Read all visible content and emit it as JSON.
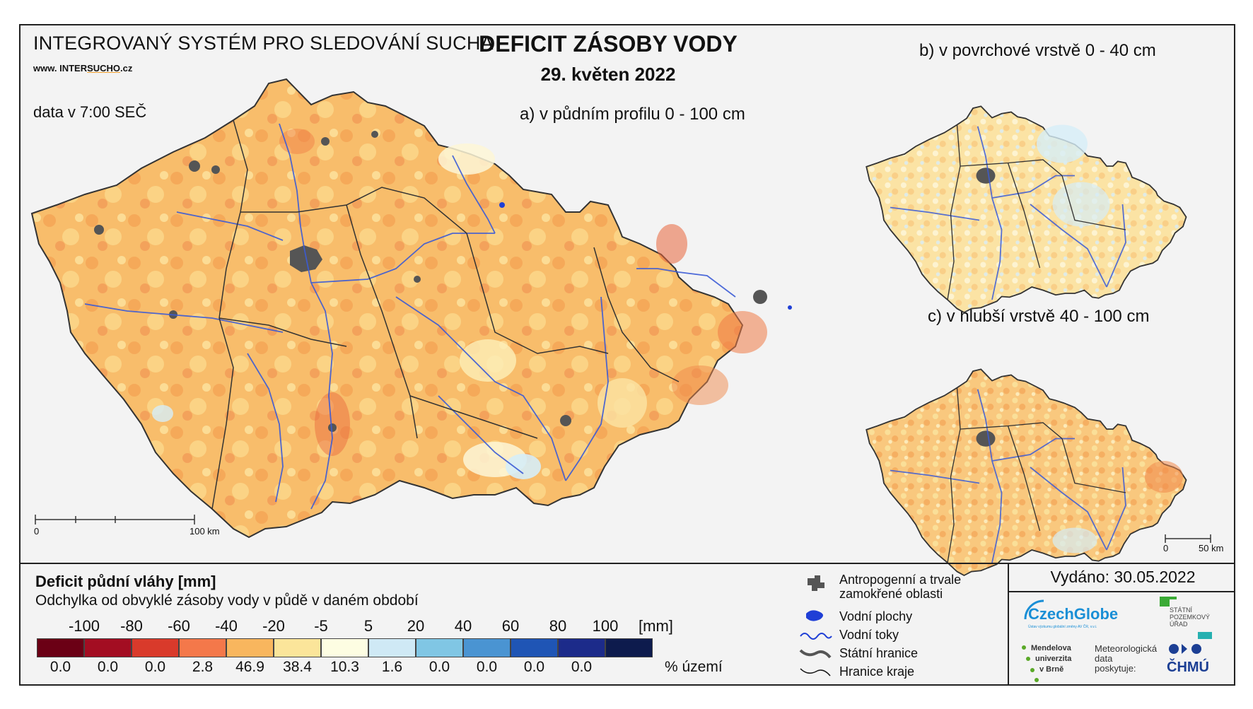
{
  "header": {
    "system_title": "INTEGROVANÝ SYSTÉM PRO SLEDOVÁNÍ SUCHA",
    "url_prefix": "www.",
    "url_a": "INTER",
    "url_b": "SUCHO",
    "url_suffix": ".cz",
    "data_time": "data v 7:00 SEČ",
    "main_title": "DEFICIT ZÁSOBY VODY",
    "date": "29. květen 2022"
  },
  "maps": {
    "a_title": "a) v půdním profilu 0 - 100 cm",
    "b_title": "b) v povrchové vrstvě 0 - 40 cm",
    "c_title": "c) v hlubší vrstvě 40 - 100 cm",
    "scale_a_start": "0",
    "scale_a_end": "100 km",
    "scale_c_start": "0",
    "scale_c_end": "50 km"
  },
  "legend": {
    "title": "Deficit půdní vláhy  [mm]",
    "subtitle": "Odchylka od obvyklé zásoby vody v půdě v daném období",
    "thresholds": [
      "-100",
      "-80",
      "-60",
      "-40",
      "-20",
      "-5",
      "5",
      "20",
      "40",
      "60",
      "80",
      "100"
    ],
    "unit": "[mm]",
    "colors": [
      "#6b0015",
      "#a30d22",
      "#d93a2b",
      "#f4784a",
      "#f8b65e",
      "#fbe59a",
      "#fdfde2",
      "#cfe9f5",
      "#80c6e4",
      "#4a94d2",
      "#1f55b5",
      "#1c2b8a",
      "#0d1b4d"
    ],
    "percentages": [
      "0.0",
      "0.0",
      "0.0",
      "2.8",
      "46.9",
      "38.4",
      "10.3",
      "1.6",
      "0.0",
      "0.0",
      "0.0",
      "0.0"
    ],
    "percent_unit": "% území"
  },
  "symbols": {
    "urban": "Antropogenní a trvale zamokřené oblasti",
    "water_bodies": "Vodní plochy",
    "rivers": "Vodní toky",
    "state_border": "Státní hranice",
    "region_border": "Hranice kraje"
  },
  "issued": "Vydáno: 30.05.2022",
  "logos": {
    "czechglobe": "CzechGlobe",
    "czechglobe_sub": "Ústav výzkumu globální změny AV ČR, v.v.i.",
    "spu_1": "STÁTNÍ",
    "spu_2": "POZEMKOVÝ",
    "spu_3": "ÚŘAD",
    "mendel_1": "Mendelova",
    "mendel_2": "univerzita",
    "mendel_3": "v Brně",
    "met_1": "Meteorologická",
    "met_2": "data",
    "met_3": "poskytuje:",
    "chmu": "ČHMÚ"
  }
}
